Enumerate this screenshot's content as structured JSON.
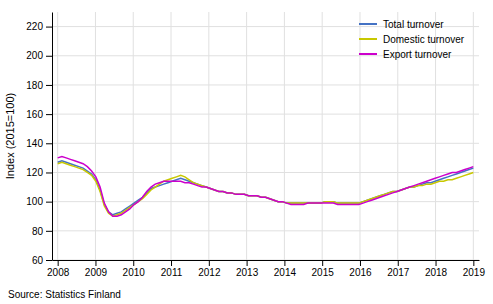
{
  "chart_data": {
    "type": "line",
    "y_label": "Index (2015=100)",
    "annotations": [
      "Source: Statistics Finland"
    ],
    "x": [
      2008,
      2008.112245,
      2008.22449,
      2008.336735,
      2008.44898,
      2008.561224,
      2008.673469,
      2008.785714,
      2008.897959,
      2009.010204,
      2009.122449,
      2009.234694,
      2009.346939,
      2009.459184,
      2009.571429,
      2009.683673,
      2009.795918,
      2009.908163,
      2010.020408,
      2010.132653,
      2010.244898,
      2010.357143,
      2010.469388,
      2010.581633,
      2010.693878,
      2010.806122,
      2010.918367,
      2011.030612,
      2011.142857,
      2011.255102,
      2011.367347,
      2011.479592,
      2011.591837,
      2011.704082,
      2011.816327,
      2011.928571,
      2012.040816,
      2012.153061,
      2012.265306,
      2012.377551,
      2012.489796,
      2012.602041,
      2012.714286,
      2012.826531,
      2012.938776,
      2013.05102,
      2013.163265,
      2013.27551,
      2013.387755,
      2013.5,
      2013.612245,
      2013.72449,
      2013.836735,
      2013.94898,
      2014.061224,
      2014.173469,
      2014.285714,
      2014.397959,
      2014.510204,
      2014.622449,
      2014.734694,
      2014.846939,
      2014.959184,
      2015.071429,
      2015.183673,
      2015.295918,
      2015.408163,
      2015.520408,
      2015.632653,
      2015.744898,
      2015.857143,
      2015.969388,
      2016.081633,
      2016.193878,
      2016.306122,
      2016.418367,
      2016.530612,
      2016.642857,
      2016.755102,
      2016.867347,
      2016.979592,
      2017.091837,
      2017.204082,
      2017.316327,
      2017.428571,
      2017.540816,
      2017.653061,
      2017.765306,
      2017.877551,
      2017.989796,
      2018.102041,
      2018.214286,
      2018.326531,
      2018.438776,
      2018.55102,
      2018.663265,
      2018.77551,
      2018.887755,
      2019
    ],
    "series": [
      {
        "name": "Total turnover",
        "color": "#4472C4",
        "values": [
          127,
          128,
          127,
          126,
          125,
          124,
          123,
          121,
          119,
          115,
          108,
          98,
          93,
          91,
          92,
          93,
          95,
          97,
          99,
          101,
          103,
          106,
          109,
          110,
          111,
          112,
          113,
          114,
          115,
          116,
          115,
          114,
          113,
          112,
          111,
          110,
          109,
          108,
          107,
          107,
          106,
          106,
          105,
          105,
          105,
          104,
          104,
          104,
          103,
          103,
          102,
          101,
          100,
          100,
          99,
          99,
          99,
          99,
          99,
          99,
          99,
          99,
          99,
          100,
          100,
          100,
          99,
          99,
          99,
          99,
          99,
          99,
          100,
          101,
          102,
          103,
          104,
          105,
          106,
          107,
          107,
          108,
          109,
          110,
          110,
          111,
          112,
          113,
          113,
          114,
          115,
          116,
          117,
          118,
          119,
          120,
          121,
          122,
          123
        ]
      },
      {
        "name": "Domestic turnover",
        "color": "#C8C800",
        "values": [
          126,
          127,
          126,
          125,
          124,
          123,
          122,
          120,
          118,
          114,
          107,
          97,
          92,
          90,
          91,
          92,
          94,
          96,
          98,
          100,
          102,
          105,
          108,
          110,
          112,
          114,
          115,
          116,
          117,
          118,
          117,
          115,
          113,
          112,
          111,
          110,
          109,
          108,
          107,
          107,
          106,
          106,
          105,
          105,
          105,
          104,
          104,
          104,
          103,
          103,
          102,
          101,
          100,
          100,
          99,
          99,
          99,
          99,
          99,
          99,
          99,
          99,
          99,
          100,
          100,
          100,
          99,
          99,
          99,
          99,
          99,
          99,
          100,
          101,
          102,
          103,
          104,
          105,
          106,
          107,
          107,
          108,
          109,
          110,
          110,
          111,
          111,
          112,
          112,
          113,
          114,
          114,
          115,
          115,
          116,
          117,
          118,
          119,
          120
        ]
      },
      {
        "name": "Export turnover",
        "color": "#CC00CC",
        "values": [
          130,
          131,
          130,
          129,
          128,
          127,
          126,
          124,
          121,
          117,
          110,
          99,
          93,
          90,
          90,
          91,
          93,
          95,
          98,
          100,
          103,
          107,
          110,
          112,
          113,
          114,
          114,
          114,
          114,
          114,
          113,
          113,
          112,
          111,
          110,
          110,
          109,
          108,
          107,
          107,
          106,
          106,
          105,
          105,
          105,
          104,
          104,
          104,
          103,
          103,
          102,
          101,
          100,
          100,
          99,
          98,
          98,
          98,
          98,
          99,
          99,
          99,
          99,
          99,
          99,
          99,
          98,
          98,
          98,
          98,
          98,
          98,
          99,
          100,
          101,
          102,
          103,
          104,
          105,
          106,
          107,
          108,
          109,
          110,
          111,
          112,
          113,
          114,
          115,
          116,
          117,
          118,
          119,
          120,
          120,
          121,
          122,
          123,
          124
        ]
      }
    ],
    "xlim": [
      2007.85,
      2019.15
    ],
    "xticks": [
      2008,
      2009,
      2010,
      2011,
      2012,
      2013,
      2014,
      2015,
      2016,
      2017,
      2018,
      2019
    ],
    "ylim": [
      60,
      230
    ],
    "yticks": [
      60,
      80,
      100,
      120,
      140,
      160,
      180,
      200,
      220
    ],
    "grid": true,
    "legend": "upper right"
  }
}
